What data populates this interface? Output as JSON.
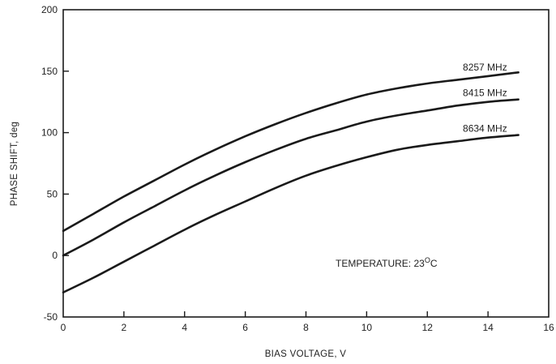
{
  "chart_data": {
    "type": "line",
    "title": "",
    "xlabel": "BIAS VOLTAGE, V",
    "ylabel": "PHASE SHIFT, deg",
    "xlim": [
      0,
      16
    ],
    "ylim": [
      -50,
      200
    ],
    "xticks": [
      0,
      2,
      4,
      6,
      8,
      10,
      12,
      14,
      16
    ],
    "yticks": [
      -50,
      0,
      50,
      100,
      150,
      200
    ],
    "grid": false,
    "legend": "inline",
    "annotation": {
      "prefix": "TEMPERATURE: 23",
      "superscript": "O",
      "suffix": "C"
    },
    "series": [
      {
        "name": "8257 MHz",
        "x": [
          0,
          1,
          2,
          3,
          4,
          5,
          6,
          7,
          8,
          9,
          10,
          11,
          12,
          13,
          14,
          15
        ],
        "y": [
          20,
          34,
          48,
          61,
          74,
          86,
          97,
          107,
          116,
          124,
          131,
          136,
          140,
          143,
          146,
          149
        ]
      },
      {
        "name": "8415 MHz",
        "x": [
          0,
          1,
          2,
          3,
          4,
          5,
          6,
          7,
          8,
          9,
          10,
          11,
          12,
          13,
          14,
          15
        ],
        "y": [
          0,
          13,
          27,
          40,
          53,
          65,
          76,
          86,
          95,
          102,
          109,
          114,
          118,
          122,
          125,
          127
        ]
      },
      {
        "name": "8634 MHz",
        "x": [
          0,
          1,
          2,
          3,
          4,
          5,
          6,
          7,
          8,
          9,
          10,
          11,
          12,
          13,
          14,
          15
        ],
        "y": [
          -30,
          -18,
          -5,
          8,
          21,
          33,
          44,
          55,
          65,
          73,
          80,
          86,
          90,
          93,
          96,
          98
        ]
      }
    ]
  }
}
